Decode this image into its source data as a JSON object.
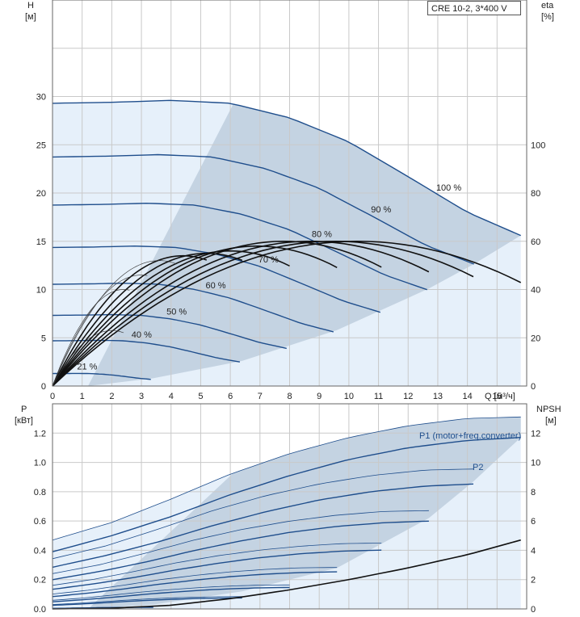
{
  "title": "CRE 10-2, 3*400 V",
  "colors": {
    "grid": "#c9c9c9",
    "operating_area": "#c4d3e2",
    "extended_area": "#e6f0fa",
    "speed_curve": "#1f4e8c",
    "efficiency_curve": "#111111",
    "thin_curve": "#333333"
  },
  "chart_data": [
    {
      "type": "line",
      "name": "head-curves",
      "x_axis": {
        "label": "Q [м³/ч]",
        "range": [
          0,
          16
        ],
        "ticks": [
          "0",
          "1",
          "2",
          "3",
          "4",
          "5",
          "6",
          "7",
          "8",
          "9",
          "10",
          "11",
          "12",
          "13",
          "14",
          "15"
        ]
      },
      "y_axis_left": {
        "label_top": "H",
        "label_unit": "[м]",
        "range": [
          0,
          40
        ],
        "ticks": [
          "0",
          "5",
          "10",
          "15",
          "20",
          "25",
          "30"
        ]
      },
      "y_axis_right": {
        "label_top": "eta",
        "label_unit": "[%]",
        "range": [
          0,
          160
        ],
        "ticks": [
          "0",
          "20",
          "40",
          "60",
          "80",
          "100"
        ]
      },
      "speed_labels": [
        "100 %",
        "90 %",
        "80 %",
        "70 %",
        "60 %",
        "50 %",
        "40 %",
        "21 %"
      ],
      "speed_label_q": [
        13,
        12,
        11,
        10,
        8.7,
        7.8,
        6.8,
        4.2
      ],
      "series": [
        {
          "name": "100 %",
          "speed": 1.0,
          "qmax": 15.8
        },
        {
          "name": "90 %",
          "speed": 0.9,
          "qmax": 14.2
        },
        {
          "name": "80 %",
          "speed": 0.8,
          "qmax": 12.7
        },
        {
          "name": "70 %",
          "speed": 0.7,
          "qmax": 11.1
        },
        {
          "name": "60 %",
          "speed": 0.6,
          "qmax": 9.6
        },
        {
          "name": "50 %",
          "speed": 0.5,
          "qmax": 8.0
        },
        {
          "name": "40 %",
          "speed": 0.4,
          "qmax": 6.4
        },
        {
          "name": "21 %",
          "speed": 0.21,
          "qmax": 3.4
        }
      ],
      "base_head_curve": {
        "q": [
          0,
          2,
          4,
          6,
          8,
          10,
          12,
          14,
          15.8
        ],
        "h": [
          29.3,
          29.4,
          29.6,
          29.3,
          27.8,
          25.3,
          21.7,
          18.0,
          15.6
        ]
      },
      "efficiency_curves": {
        "peak_eta": [
          60,
          60,
          60,
          60,
          58,
          56,
          55,
          54,
          52,
          46,
          40,
          23
        ],
        "q_end": [
          15.8,
          14.2,
          12.7,
          11.1,
          9.6,
          8.0,
          6.4,
          5.2,
          4.2,
          3.2,
          2.6,
          2.4
        ],
        "best_q": [
          10.3,
          9.5,
          8.7,
          7.8,
          6.9,
          6.0,
          5.2,
          4.4,
          3.6,
          3.0,
          2.4,
          2.0
        ]
      }
    },
    {
      "type": "line",
      "name": "power-curves",
      "x_axis": {
        "range": [
          0,
          16
        ]
      },
      "y_axis_left": {
        "label_top": "P",
        "label_unit": "[кВт]",
        "range": [
          0,
          1.4
        ],
        "ticks": [
          "0.0",
          "0.2",
          "0.4",
          "0.6",
          "0.8",
          "1.0",
          "1.2"
        ]
      },
      "y_axis_right": {
        "label_top": "NPSH",
        "label_unit": "[м]",
        "range": [
          0,
          14
        ],
        "ticks": [
          "0",
          "2",
          "4",
          "6",
          "8",
          "10",
          "12"
        ]
      },
      "legend": [
        "P1 (motor+freq.converter)",
        "P2"
      ],
      "p1_curve": {
        "q": [
          0,
          2,
          4,
          6,
          8,
          10,
          12,
          14,
          15.8
        ],
        "p": [
          0.47,
          0.59,
          0.75,
          0.92,
          1.06,
          1.17,
          1.25,
          1.3,
          1.31
        ]
      },
      "p2_curve": {
        "q": [
          0,
          2,
          4,
          6,
          8,
          10,
          12,
          14,
          15.8
        ],
        "p": [
          0.39,
          0.5,
          0.63,
          0.78,
          0.91,
          1.02,
          1.1,
          1.15,
          1.17
        ]
      },
      "npsh_curve": {
        "q": [
          0,
          2,
          4,
          6,
          8,
          10,
          12,
          14,
          15.8
        ],
        "npsh": [
          0.0,
          0.05,
          0.25,
          0.7,
          1.3,
          2.0,
          2.8,
          3.7,
          4.7
        ]
      }
    }
  ]
}
